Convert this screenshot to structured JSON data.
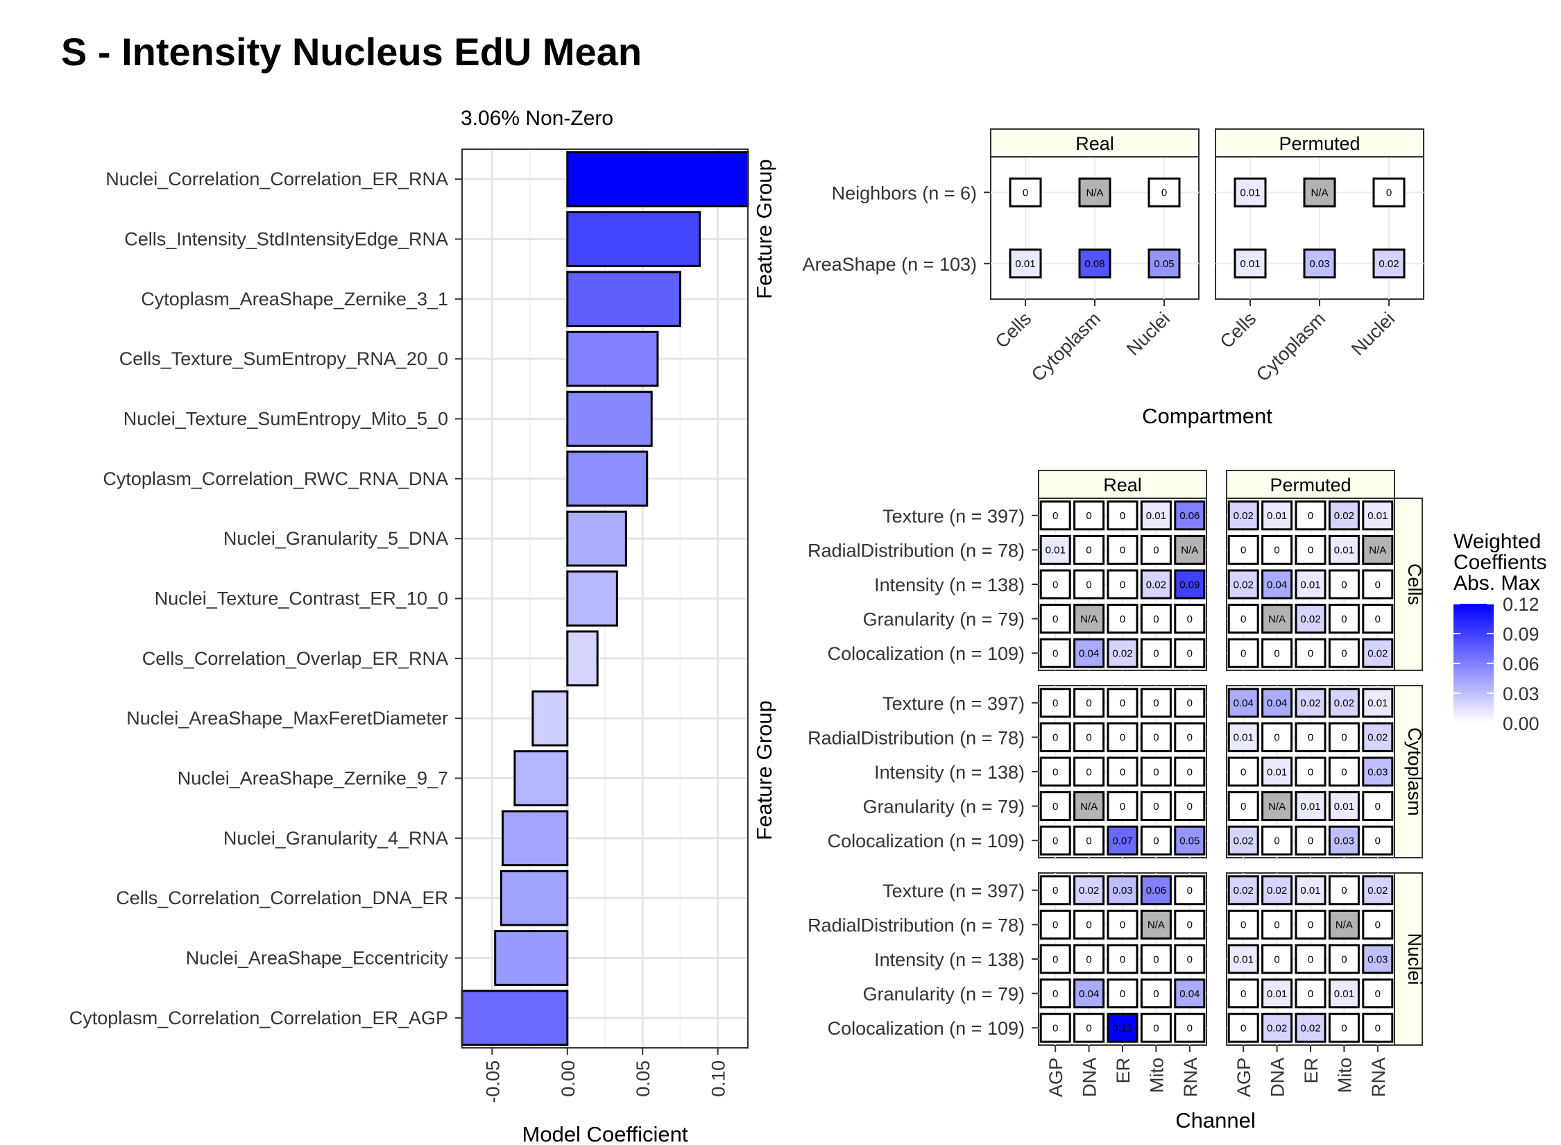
{
  "title": "S - Intensity Nucleus EdU Mean",
  "colors": {
    "scale_low": "#ffffff",
    "scale_high": "#0000ff",
    "na_fill": "#b3b3b3",
    "strip_fill": "#fffff0",
    "grid": "#ebebeb"
  },
  "chart_data": [
    {
      "type": "bar",
      "orientation": "horizontal",
      "title": "3.06% Non-Zero",
      "xlabel": "Model Coefficient",
      "ylabel": "",
      "xlim": [
        -0.07,
        0.12
      ],
      "x_ticks": [
        "-0.05",
        "0.00",
        "0.05",
        "0.10"
      ],
      "categories": [
        "Nuclei_Correlation_Correlation_ER_RNA",
        "Cells_Intensity_StdIntensityEdge_RNA",
        "Cytoplasm_AreaShape_Zernike_3_1",
        "Cells_Texture_SumEntropy_RNA_20_0",
        "Nuclei_Texture_SumEntropy_Mito_5_0",
        "Cytoplasm_Correlation_RWC_RNA_DNA",
        "Nuclei_Granularity_5_DNA",
        "Nuclei_Texture_Contrast_ER_10_0",
        "Cells_Correlation_Overlap_ER_RNA",
        "Nuclei_AreaShape_MaxFeretDiameter",
        "Nuclei_AreaShape_Zernike_9_7",
        "Nuclei_Granularity_4_RNA",
        "Cells_Correlation_Correlation_DNA_ER",
        "Nuclei_AreaShape_Eccentricity",
        "Cytoplasm_Correlation_Correlation_ER_AGP"
      ],
      "values": [
        0.12,
        0.088,
        0.075,
        0.06,
        0.056,
        0.053,
        0.039,
        0.033,
        0.02,
        -0.023,
        -0.035,
        -0.043,
        -0.044,
        -0.048,
        -0.07
      ],
      "grid": true
    },
    {
      "type": "heatmap",
      "title": "",
      "xlabel": "Compartment",
      "ylabel": "Feature Group",
      "panels": [
        "Real",
        "Permuted"
      ],
      "x": [
        "Cells",
        "Cytoplasm",
        "Nuclei"
      ],
      "y": [
        "Neighbors (n = 6)",
        "AreaShape (n = 103)"
      ],
      "cells": {
        "Real": [
          [
            "0",
            "N/A",
            "0"
          ],
          [
            "0.01",
            "0.08",
            "0.05"
          ]
        ],
        "Permuted": [
          [
            "0.01",
            "N/A",
            "0"
          ],
          [
            "0.01",
            "0.03",
            "0.02"
          ]
        ]
      }
    },
    {
      "type": "heatmap",
      "title": "",
      "xlabel": "Channel",
      "ylabel": "Feature Group",
      "col_panels": [
        "Real",
        "Permuted"
      ],
      "row_panels": [
        "Cells",
        "Cytoplasm",
        "Nuclei"
      ],
      "x": [
        "AGP",
        "DNA",
        "ER",
        "Mito",
        "RNA"
      ],
      "y": [
        "Texture (n = 397)",
        "RadialDistribution (n = 78)",
        "Intensity (n = 138)",
        "Granularity (n = 79)",
        "Colocalization (n = 109)"
      ],
      "cells": {
        "Cells": {
          "Real": [
            [
              "0",
              "0",
              "0",
              "0.01",
              "0.06"
            ],
            [
              "0.01",
              "0",
              "0",
              "0",
              "N/A"
            ],
            [
              "0",
              "0",
              "0",
              "0.02",
              "0.09"
            ],
            [
              "0",
              "N/A",
              "0",
              "0",
              "0"
            ],
            [
              "0",
              "0.04",
              "0.02",
              "0",
              "0"
            ]
          ],
          "Permuted": [
            [
              "0.02",
              "0.01",
              "0",
              "0.02",
              "0.01"
            ],
            [
              "0",
              "0",
              "0",
              "0.01",
              "N/A"
            ],
            [
              "0.02",
              "0.04",
              "0.01",
              "0",
              "0"
            ],
            [
              "0",
              "N/A",
              "0.02",
              "0",
              "0"
            ],
            [
              "0",
              "0",
              "0",
              "0",
              "0.02"
            ]
          ]
        },
        "Cytoplasm": {
          "Real": [
            [
              "0",
              "0",
              "0",
              "0",
              "0"
            ],
            [
              "0",
              "0",
              "0",
              "0",
              "0"
            ],
            [
              "0",
              "0",
              "0",
              "0",
              "0"
            ],
            [
              "0",
              "N/A",
              "0",
              "0",
              "0"
            ],
            [
              "0",
              "0",
              "0.07",
              "0",
              "0.05"
            ]
          ],
          "Permuted": [
            [
              "0.04",
              "0.04",
              "0.02",
              "0.02",
              "0.01"
            ],
            [
              "0.01",
              "0",
              "0",
              "0",
              "0.02"
            ],
            [
              "0",
              "0.01",
              "0",
              "0",
              "0.03"
            ],
            [
              "0",
              "N/A",
              "0.01",
              "0.01",
              "0"
            ],
            [
              "0.02",
              "0",
              "0",
              "0.03",
              "0"
            ]
          ]
        },
        "Nuclei": {
          "Real": [
            [
              "0",
              "0.02",
              "0.03",
              "0.06",
              "0"
            ],
            [
              "0",
              "0",
              "0",
              "N/A",
              "0"
            ],
            [
              "0",
              "0",
              "0",
              "0",
              "0"
            ],
            [
              "0",
              "0.04",
              "0",
              "0",
              "0.04"
            ],
            [
              "0",
              "0",
              "0.12",
              "0",
              "0"
            ]
          ],
          "Permuted": [
            [
              "0.02",
              "0.02",
              "0.01",
              "0",
              "0.02"
            ],
            [
              "0",
              "0",
              "0",
              "N/A",
              "0"
            ],
            [
              "0.01",
              "0",
              "0",
              "0",
              "0.03"
            ],
            [
              "0",
              "0.01",
              "0",
              "0.01",
              "0"
            ],
            [
              "0",
              "0.02",
              "0.02",
              "0",
              "0"
            ]
          ]
        }
      }
    }
  ],
  "legend": {
    "title_lines": [
      "Weighted",
      "Coeffients",
      "Abs. Max"
    ],
    "range": [
      0,
      0.12
    ],
    "ticks": [
      "0.12",
      "0.09",
      "0.06",
      "0.03",
      "0.00"
    ],
    "placement": "right"
  }
}
